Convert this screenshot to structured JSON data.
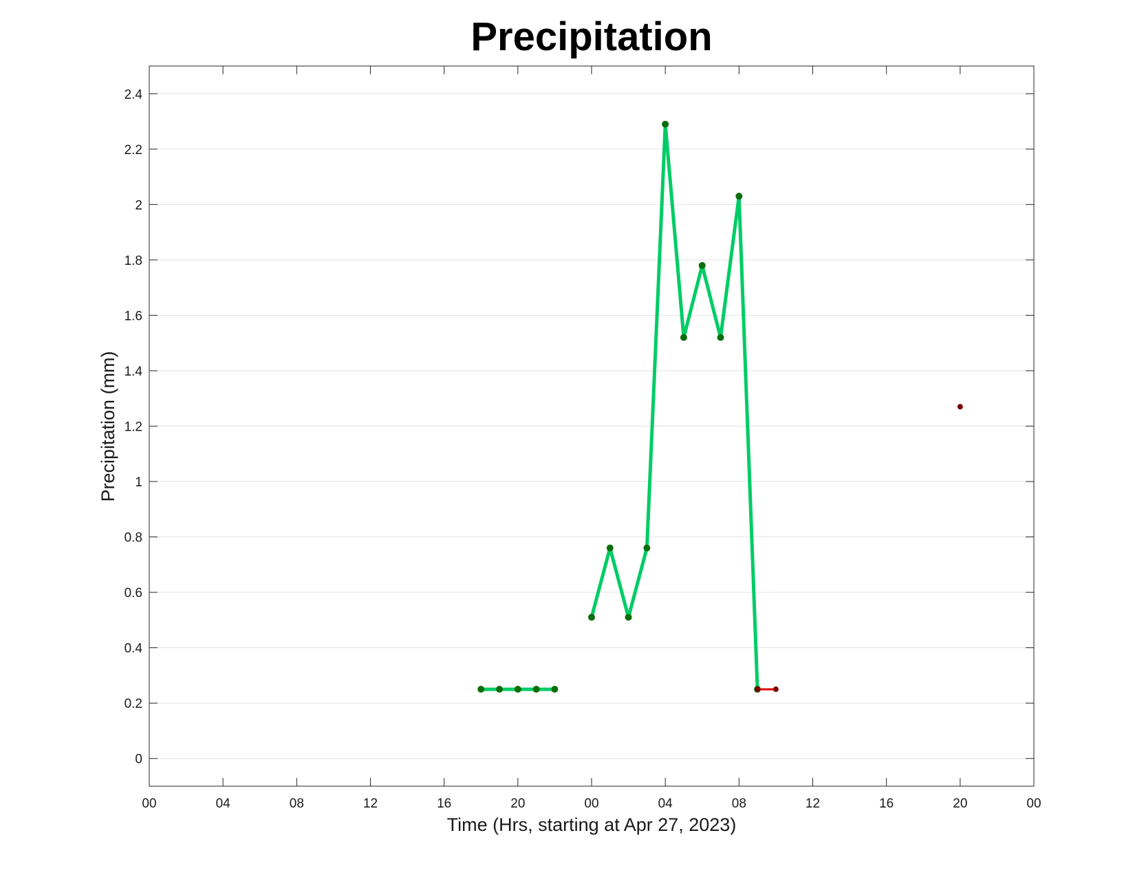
{
  "chart_data": {
    "type": "line",
    "title": "Precipitation",
    "xlabel": "Time (Hrs, starting at Apr 27, 2023)",
    "ylabel": "Precipitation (mm)",
    "x_unit": "hours",
    "xlim": [
      0,
      48
    ],
    "ylim": [
      -0.1,
      2.5
    ],
    "x_ticks": [
      0,
      4,
      8,
      12,
      16,
      20,
      24,
      28,
      32,
      36,
      40,
      44,
      48
    ],
    "x_tick_labels": [
      "00",
      "04",
      "08",
      "12",
      "16",
      "20",
      "00",
      "04",
      "08",
      "12",
      "16",
      "20",
      "00"
    ],
    "y_ticks": [
      0,
      0.2,
      0.4,
      0.6,
      0.8,
      1.0,
      1.2,
      1.4,
      1.6,
      1.8,
      2.0,
      2.2,
      2.4
    ],
    "y_tick_labels": [
      "0",
      "0.2",
      "0.4",
      "0.6",
      "0.8",
      "1",
      "1.2",
      "1.4",
      "1.6",
      "1.8",
      "2",
      "2.2",
      "2.4"
    ],
    "grid": true,
    "legend": "none",
    "series": [
      {
        "color": "#00cc66",
        "marker_color": "#0a6e0a",
        "segments": [
          [
            [
              18,
              0.25
            ],
            [
              19,
              0.25
            ],
            [
              20,
              0.25
            ],
            [
              21,
              0.25
            ],
            [
              22,
              0.25
            ]
          ],
          [
            [
              24,
              0.51
            ],
            [
              25,
              0.76
            ],
            [
              26,
              0.51
            ],
            [
              27,
              0.76
            ],
            [
              28,
              2.29
            ],
            [
              29,
              1.52
            ],
            [
              30,
              1.78
            ],
            [
              31,
              1.52
            ],
            [
              32,
              2.03
            ],
            [
              33,
              0.25
            ]
          ]
        ]
      },
      {
        "color": "#e00000",
        "marker_color": "#7a0000",
        "segments": [
          [
            [
              33,
              0.25
            ],
            [
              34,
              0.25
            ]
          ],
          [
            [
              44,
              1.27
            ]
          ]
        ]
      }
    ]
  }
}
